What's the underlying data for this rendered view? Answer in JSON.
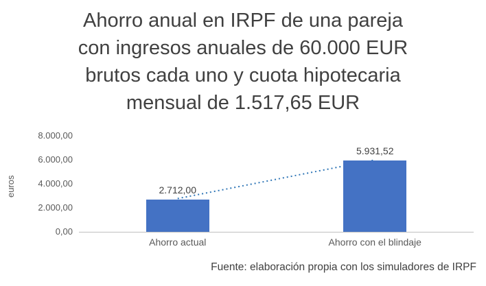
{
  "title": {
    "lines": [
      "Ahorro anual en IRPF de una pareja",
      "con ingresos anuales de 60.000 EUR",
      "brutos cada uno y cuota hipotecaria",
      "mensual de 1.517,65 EUR"
    ]
  },
  "chart_data": {
    "type": "bar",
    "title": "Ahorro anual en IRPF de una pareja con ingresos anuales de 60.000 EUR brutos cada uno y cuota hipotecaria mensual de 1.517,65 EUR",
    "categories": [
      "Ahorro actual",
      "Ahorro con el blindaje"
    ],
    "values": [
      2712.0,
      5931.52
    ],
    "value_labels": [
      "2.712,00",
      "5.931,52"
    ],
    "ylabel": "euros",
    "xlabel": "",
    "ylim": [
      0,
      8000
    ],
    "yticks": [
      0,
      2000,
      4000,
      6000,
      8000
    ],
    "ytick_labels": [
      "0,00",
      "2.000,00",
      "4.000,00",
      "6.000,00",
      "8.000,00"
    ],
    "grid": false,
    "legend": "none",
    "trendline": true,
    "bar_color": "#4472C4",
    "trendline_color": "#2E75B6",
    "axis_color": "#bfbfbf"
  },
  "footer": {
    "source_note": "Fuente: elaboración propia con los simuladores de IRPF"
  }
}
